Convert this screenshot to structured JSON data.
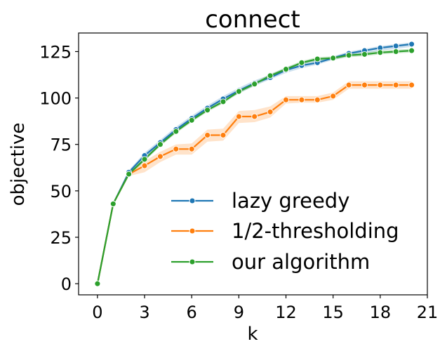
{
  "chart_data": {
    "type": "line",
    "title": "connect",
    "xlabel": "k",
    "ylabel": "objective",
    "xlim": [
      -1.2,
      21
    ],
    "ylim": [
      -6,
      135
    ],
    "xticks": [
      0,
      3,
      6,
      9,
      12,
      15,
      18,
      21
    ],
    "xtick_labels": [
      "0",
      "3",
      "6",
      "9",
      "12",
      "15",
      "18",
      "21"
    ],
    "yticks": [
      0,
      25,
      50,
      75,
      100,
      125
    ],
    "ytick_labels": [
      "0",
      "25",
      "50",
      "75",
      "100",
      "125"
    ],
    "grid": false,
    "legend_position": "lower right",
    "x": [
      0,
      1,
      2,
      3,
      4,
      5,
      6,
      7,
      8,
      9,
      10,
      11,
      12,
      13,
      14,
      15,
      16,
      17,
      18,
      19,
      20
    ],
    "series": [
      {
        "name": "lazy greedy",
        "color": "#1f77b4",
        "values": [
          0,
          43,
          60,
          69,
          76,
          83,
          89,
          94.5,
          99.5,
          104,
          108,
          111,
          115,
          117.5,
          119,
          121.5,
          124,
          125.5,
          127,
          128,
          129
        ],
        "band_low": [
          0,
          43,
          59,
          67.5,
          74.5,
          81.5,
          87.5,
          93,
          98,
          102.5,
          106.5,
          110,
          113.5,
          116,
          118,
          120.5,
          122.5,
          124,
          125.5,
          126.5,
          127.5
        ],
        "band_high": [
          0,
          43,
          61,
          70.5,
          77.5,
          84.5,
          90.5,
          96,
          101,
          105.5,
          109.5,
          112.5,
          116.5,
          119,
          120.5,
          122.5,
          125,
          126.5,
          128,
          129,
          130
        ]
      },
      {
        "name": "1/2-thresholding",
        "color": "#ff7f0e",
        "values": [
          0,
          43,
          59,
          63.5,
          68.5,
          72.5,
          72.5,
          80,
          80,
          90,
          90,
          92.5,
          99,
          99,
          99,
          101,
          107,
          107,
          107,
          107,
          107
        ],
        "band_low": [
          0,
          43,
          58,
          60,
          65.5,
          69.5,
          69.5,
          76.5,
          77,
          86.5,
          87,
          89.5,
          97,
          97.5,
          97.5,
          99,
          105,
          105,
          105,
          105,
          105
        ],
        "band_high": [
          0,
          43,
          60,
          66,
          71,
          75,
          75.5,
          83,
          83.5,
          93,
          93.5,
          95.5,
          101,
          101,
          101,
          103,
          109,
          109,
          109,
          109,
          109
        ]
      },
      {
        "name": "our algorithm",
        "color": "#2ca02c",
        "values": [
          0,
          43,
          59,
          67,
          75,
          82,
          88,
          93.5,
          98,
          103.5,
          107.5,
          112,
          115.5,
          119,
          121,
          121.5,
          123,
          123.5,
          124.5,
          125,
          125.5
        ],
        "band_low": [
          0,
          43,
          58,
          66,
          74,
          81,
          87,
          92.5,
          97,
          102.5,
          106.5,
          111,
          114.5,
          118,
          120,
          120.5,
          122,
          122.5,
          123.5,
          124,
          124.5
        ],
        "band_high": [
          0,
          43,
          60,
          68,
          76,
          83,
          89,
          94.5,
          99,
          104.5,
          108.5,
          113,
          116.5,
          120,
          122,
          122.5,
          124,
          124.5,
          125.5,
          126,
          126.5
        ]
      }
    ]
  }
}
